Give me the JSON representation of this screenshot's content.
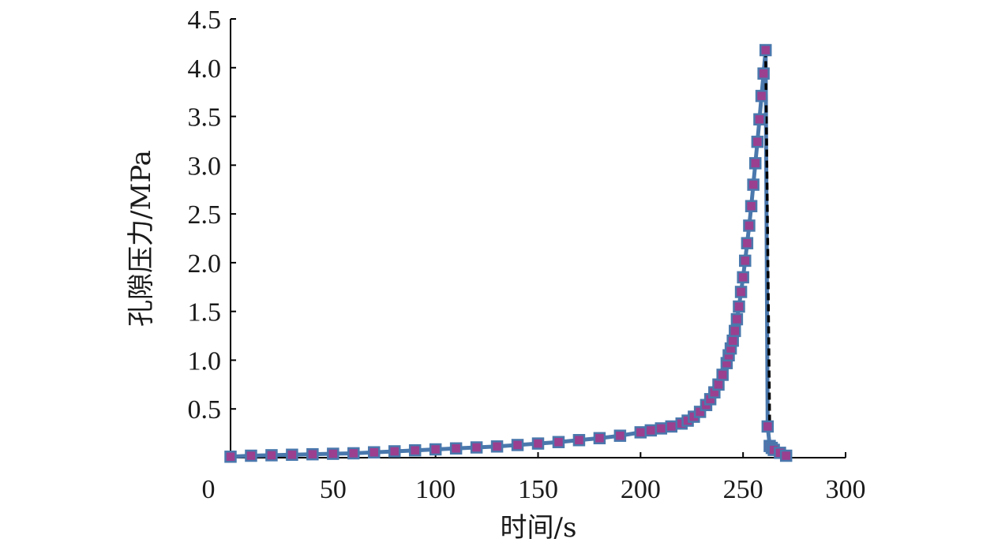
{
  "chart_data": {
    "type": "scatter",
    "title": "",
    "xlabel": "时间/s",
    "ylabel": "孔隙压力/MPa",
    "xlim": [
      0,
      300
    ],
    "ylim": [
      0,
      4.5
    ],
    "x_ticks": [
      0,
      50,
      100,
      150,
      200,
      250,
      300
    ],
    "x_tick_labels": [
      "0",
      "50",
      "100",
      "150",
      "200",
      "250",
      "300"
    ],
    "y_ticks": [
      0.5,
      1.0,
      1.5,
      2.0,
      2.5,
      3.0,
      3.5,
      4.0,
      4.5
    ],
    "y_tick_labels": [
      "0.5",
      "1.0",
      "1.5",
      "2.0",
      "2.5",
      "3.0",
      "3.5",
      "4.0",
      "4.5"
    ],
    "grid": false,
    "legend": "none",
    "marker_color": "#9b3f8f",
    "marker_edge_color": "#4a78ad",
    "line_color": "#4a78ad",
    "drop_line_color": "#000000",
    "series": [
      {
        "x": [
          0,
          10,
          20,
          30,
          40,
          50,
          60,
          70,
          80,
          90,
          100,
          110,
          120,
          130,
          140,
          150,
          160,
          170,
          180,
          190,
          200,
          205,
          210,
          215,
          220,
          223,
          226,
          229,
          232,
          234,
          236,
          238,
          240,
          242,
          243,
          244,
          245,
          246,
          247,
          248,
          249,
          250,
          251,
          252,
          253,
          254,
          255,
          256,
          257,
          258,
          259,
          260,
          261,
          262,
          263,
          264,
          265,
          268,
          271
        ],
        "y": [
          0.01,
          0.02,
          0.025,
          0.03,
          0.035,
          0.04,
          0.045,
          0.055,
          0.065,
          0.075,
          0.085,
          0.095,
          0.105,
          0.115,
          0.13,
          0.145,
          0.16,
          0.18,
          0.2,
          0.225,
          0.26,
          0.28,
          0.3,
          0.32,
          0.35,
          0.38,
          0.42,
          0.47,
          0.54,
          0.6,
          0.67,
          0.75,
          0.85,
          0.97,
          1.05,
          1.12,
          1.2,
          1.3,
          1.42,
          1.55,
          1.7,
          1.85,
          2.02,
          2.2,
          2.38,
          2.58,
          2.8,
          3.02,
          3.24,
          3.47,
          3.71,
          3.94,
          4.18,
          0.32,
          0.12,
          0.1,
          0.08,
          0.05,
          0.02
        ]
      }
    ],
    "drop_line": {
      "x": [
        261,
        263
      ],
      "y": [
        4.18,
        0.32
      ]
    }
  }
}
